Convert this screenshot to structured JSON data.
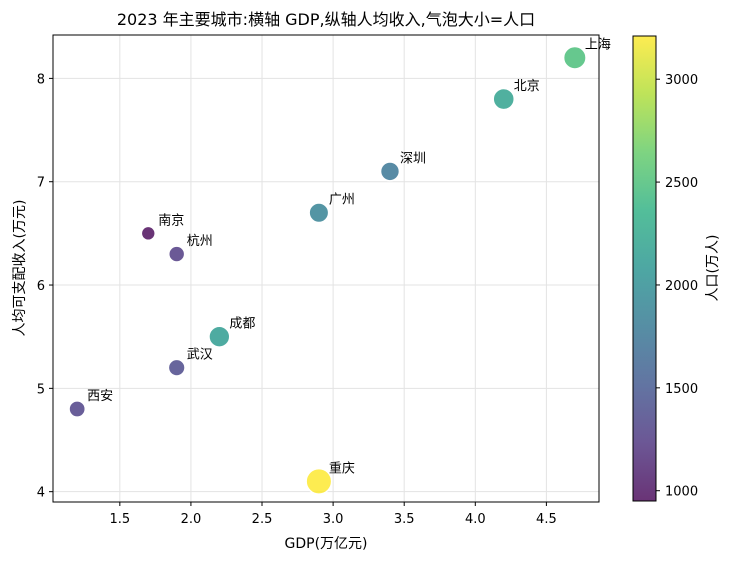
{
  "chart_data": {
    "type": "scatter",
    "title": "2023 年主要城市:横轴 GDP,纵轴人均收入,气泡大小=人口",
    "xlabel": "GDP(万亿元)",
    "ylabel": "人均可支配收入(万元)",
    "colorbar_label": "人口(万人)",
    "xlim": [
      1.03,
      4.87
    ],
    "ylim": [
      3.9,
      8.42
    ],
    "xticks": [
      1.5,
      2.0,
      2.5,
      3.0,
      3.5,
      4.0,
      4.5
    ],
    "xtick_labels": [
      "1.5",
      "2.0",
      "2.5",
      "3.0",
      "3.5",
      "4.0",
      "4.5"
    ],
    "yticks": [
      4,
      5,
      6,
      7,
      8
    ],
    "ytick_labels": [
      "4",
      "5",
      "6",
      "7",
      "8"
    ],
    "colorbar_range": [
      950,
      3210
    ],
    "colorbar_ticks": [
      1000,
      1500,
      2000,
      2500,
      3000
    ],
    "colorbar_tick_labels": [
      "1000",
      "1500",
      "2000",
      "2500",
      "3000"
    ],
    "colormap": "viridis",
    "grid": true,
    "points": [
      {
        "label": "上海",
        "x": 4.7,
        "y": 8.2,
        "population": 2490
      },
      {
        "label": "北京",
        "x": 4.2,
        "y": 7.8,
        "population": 2190
      },
      {
        "label": "深圳",
        "x": 3.4,
        "y": 7.1,
        "population": 1760
      },
      {
        "label": "广州",
        "x": 2.9,
        "y": 6.7,
        "population": 1880
      },
      {
        "label": "南京",
        "x": 1.7,
        "y": 6.5,
        "population": 950
      },
      {
        "label": "杭州",
        "x": 1.9,
        "y": 6.3,
        "population": 1250
      },
      {
        "label": "成都",
        "x": 2.2,
        "y": 5.5,
        "population": 2130
      },
      {
        "label": "武汉",
        "x": 1.9,
        "y": 5.2,
        "population": 1370
      },
      {
        "label": "西安",
        "x": 1.2,
        "y": 4.8,
        "population": 1300
      },
      {
        "label": "重庆",
        "x": 2.9,
        "y": 4.1,
        "population": 3210
      }
    ]
  }
}
